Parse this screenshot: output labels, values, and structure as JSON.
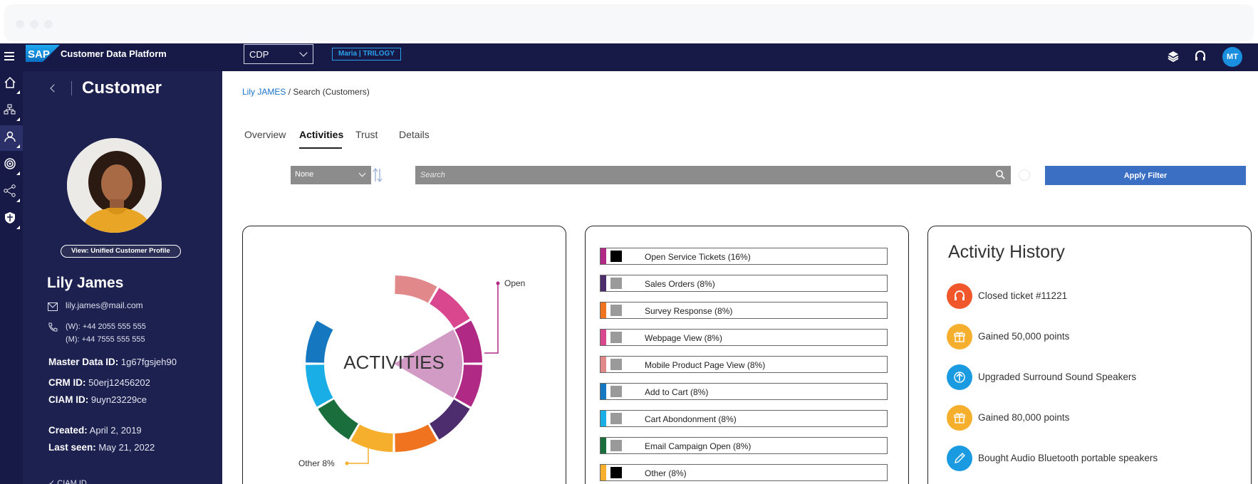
{
  "app": {
    "title": "Customer Data Platform",
    "logo_text": "SAP",
    "workspace_select": "CDP",
    "tenant_badge": "Maria | TRILOGY",
    "user_initials": "MT"
  },
  "rail": {
    "items": [
      "home-icon",
      "org-chart-icon",
      "person-icon",
      "target-icon",
      "share-icon",
      "shield-icon"
    ],
    "active_index": 2
  },
  "customer": {
    "panel_title": "Customer",
    "profile_button": "View: Unified Customer Profile",
    "name": "Lily James",
    "email": "lily.james@mail.com",
    "phone_work": "(W): +44 2055 555 555",
    "phone_mobile": "(M): +44 7555 555 555",
    "master_label": "Master Data ID:",
    "master_value": "1g67fgsjeh90",
    "crm_label": "CRM ID:",
    "crm_value": "50erj12456202",
    "ciam_label": "CIAM ID:",
    "ciam_value": "9uyn23229ce",
    "created_label": "Created:",
    "created_value": "April 2, 2019",
    "last_seen_label": "Last seen:",
    "last_seen_value": "May 21, 2022",
    "ciam_footer": "✓ CIAM ID"
  },
  "breadcrumb": {
    "link": "Lily JAMES",
    "rest": " / Search (Customers)"
  },
  "tabs": [
    {
      "label": "Overview"
    },
    {
      "label": "Activities"
    },
    {
      "label": "Trust"
    },
    {
      "label": "Details"
    }
  ],
  "active_tab": 1,
  "filter": {
    "sort_value": "None",
    "search_placeholder": "Search",
    "apply_label": "Apply Filter"
  },
  "activities_chart": {
    "center_label": "ACTIVITIES",
    "open_label": "Open",
    "other_label": "Other 8%"
  },
  "chart_data": {
    "type": "pie",
    "variant": "donut",
    "center_label": "ACTIVITIES",
    "slices": [
      {
        "label": "Open Service Tickets",
        "value": 16,
        "color": "#b02a85"
      },
      {
        "label": "Sales Orders",
        "value": 8,
        "color": "#4d2d6e"
      },
      {
        "label": "Survey Response",
        "value": 8,
        "color": "#f0731f"
      },
      {
        "label": "Webpage View",
        "value": 8,
        "color": "#d9488f"
      },
      {
        "label": "Mobile Product Page View",
        "value": 8,
        "color": "#e0888a"
      },
      {
        "label": "Add to Cart",
        "value": 8,
        "color": "#1577c0"
      },
      {
        "label": "Cart Abondonment",
        "value": 8,
        "color": "#19aee6"
      },
      {
        "label": "Email Campaign Open",
        "value": 8,
        "color": "#1a6e3c"
      },
      {
        "label": "Other",
        "value": 8,
        "color": "#f6ae2d"
      }
    ]
  },
  "legend": [
    {
      "label": "Open Service Tickets (16%)",
      "color": "#b02a85",
      "square": "#000000"
    },
    {
      "label": "Sales Orders (8%)",
      "color": "#4d2d6e",
      "square": "#9a9a9a"
    },
    {
      "label": "Survey Response (8%)",
      "color": "#f0731f",
      "square": "#9a9a9a"
    },
    {
      "label": "Webpage View (8%)",
      "color": "#d9488f",
      "square": "#9a9a9a"
    },
    {
      "label": "Mobile Product Page View (8%)",
      "color": "#e0888a",
      "square": "#9a9a9a"
    },
    {
      "label": "Add to Cart (8%)",
      "color": "#1577c0",
      "square": "#9a9a9a"
    },
    {
      "label": "Cart Abondonment (8%)",
      "color": "#19aee6",
      "square": "#9a9a9a"
    },
    {
      "label": "Email Campaign Open (8%)",
      "color": "#1a6e3c",
      "square": "#9a9a9a"
    },
    {
      "label": "Other (8%)",
      "color": "#f6ae2d",
      "square": "#000000"
    }
  ],
  "history": {
    "title": "Activity History",
    "items": [
      {
        "text": "Closed ticket #11221",
        "color": "#f0582b",
        "icon": "headset-icon"
      },
      {
        "text": "Gained 50,000 points",
        "color": "#f6ae2d",
        "icon": "gift-icon"
      },
      {
        "text": "Upgraded Surround Sound Speakers",
        "color": "#1a9ae0",
        "icon": "upgrade-icon"
      },
      {
        "text": "Gained 80,000 points",
        "color": "#f6ae2d",
        "icon": "gift-icon"
      },
      {
        "text": "Bought Audio Bluetooth portable speakers",
        "color": "#1a9ae0",
        "icon": "tag-icon"
      }
    ]
  }
}
